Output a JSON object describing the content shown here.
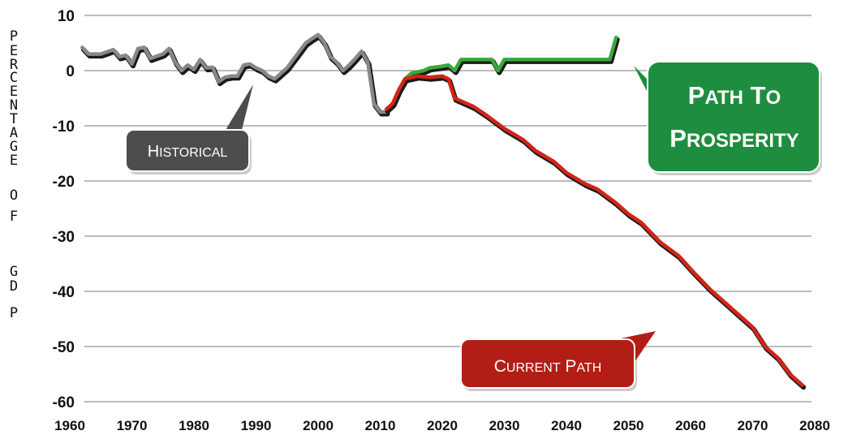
{
  "chart_data": {
    "type": "line",
    "title": "",
    "xlabel": "",
    "ylabel": "PERCENTAGE OF GDP",
    "xlim": [
      1960,
      2080
    ],
    "ylim": [
      -60,
      10
    ],
    "x_ticks": [
      "1960",
      "1970",
      "1980",
      "1990",
      "2000",
      "2010",
      "2020",
      "2030",
      "2040",
      "2050",
      "2060",
      "2070",
      "2080"
    ],
    "y_ticks": [
      "10",
      "0",
      "-10",
      "-20",
      "-30",
      "-40",
      "-50",
      "-60"
    ],
    "grid": true,
    "series": [
      {
        "name": "Historical",
        "color": "#888888",
        "points": [
          [
            1962,
            4.2
          ],
          [
            1963,
            3.0
          ],
          [
            1965,
            3.0
          ],
          [
            1967,
            3.8
          ],
          [
            1968,
            2.5
          ],
          [
            1969,
            2.8
          ],
          [
            1970,
            1.2
          ],
          [
            1971,
            4.0
          ],
          [
            1972,
            4.2
          ],
          [
            1973,
            2.2
          ],
          [
            1975,
            3.0
          ],
          [
            1976,
            4.0
          ],
          [
            1977,
            1.5
          ],
          [
            1978,
            0.0
          ],
          [
            1979,
            1.0
          ],
          [
            1980,
            0.2
          ],
          [
            1981,
            2.0
          ],
          [
            1982,
            0.5
          ],
          [
            1983,
            0.6
          ],
          [
            1984,
            -2.0
          ],
          [
            1985,
            -1.2
          ],
          [
            1986,
            -1.0
          ],
          [
            1987,
            -1.0
          ],
          [
            1988,
            1.0
          ],
          [
            1989,
            1.2
          ],
          [
            1990,
            0.5
          ],
          [
            1991,
            0.0
          ],
          [
            1992,
            -1.0
          ],
          [
            1993,
            -1.5
          ],
          [
            1994,
            -0.5
          ],
          [
            1995,
            0.5
          ],
          [
            1996,
            2.0
          ],
          [
            1997,
            3.5
          ],
          [
            1998,
            5.0
          ],
          [
            1999,
            5.8
          ],
          [
            2000,
            6.5
          ],
          [
            2001,
            5.0
          ],
          [
            2002,
            2.5
          ],
          [
            2003,
            1.5
          ],
          [
            2004,
            0.0
          ],
          [
            2005,
            1.0
          ],
          [
            2006,
            2.2
          ],
          [
            2007,
            3.5
          ],
          [
            2008,
            1.5
          ],
          [
            2009,
            -6.0
          ],
          [
            2010,
            -7.5
          ],
          [
            2011,
            -7.5
          ]
        ]
      },
      {
        "name": "Path to Prosperity",
        "color": "#3aa83a",
        "points": [
          [
            2011,
            -7.0
          ],
          [
            2012,
            -6.0
          ],
          [
            2013,
            -3.5
          ],
          [
            2014,
            -1.5
          ],
          [
            2015,
            -0.5
          ],
          [
            2017,
            0.0
          ],
          [
            2018,
            0.5
          ],
          [
            2020,
            0.8
          ],
          [
            2021,
            1.0
          ],
          [
            2022,
            0.0
          ],
          [
            2023,
            2.0
          ],
          [
            2025,
            2.0
          ],
          [
            2027,
            2.0
          ],
          [
            2028,
            2.0
          ],
          [
            2029,
            0.0
          ],
          [
            2030,
            2.0
          ],
          [
            2035,
            2.0
          ],
          [
            2038,
            2.0
          ],
          [
            2040,
            2.0
          ],
          [
            2045,
            2.0
          ],
          [
            2047,
            2.0
          ],
          [
            2048,
            6.0
          ]
        ]
      },
      {
        "name": "Current Path",
        "color": "#d42418",
        "points": [
          [
            2011,
            -7.0
          ],
          [
            2012,
            -6.0
          ],
          [
            2013,
            -3.5
          ],
          [
            2014,
            -1.5
          ],
          [
            2016,
            -1.0
          ],
          [
            2018,
            -1.2
          ],
          [
            2020,
            -1.0
          ],
          [
            2021,
            -1.5
          ],
          [
            2022,
            -5.0
          ],
          [
            2023,
            -5.5
          ],
          [
            2025,
            -6.5
          ],
          [
            2027,
            -8.0
          ],
          [
            2030,
            -10.5
          ],
          [
            2033,
            -12.5
          ],
          [
            2035,
            -14.5
          ],
          [
            2038,
            -16.5
          ],
          [
            2040,
            -18.5
          ],
          [
            2043,
            -20.5
          ],
          [
            2045,
            -21.5
          ],
          [
            2048,
            -24.0
          ],
          [
            2050,
            -26.0
          ],
          [
            2052,
            -27.5
          ],
          [
            2055,
            -31.0
          ],
          [
            2058,
            -33.5
          ],
          [
            2060,
            -36.0
          ],
          [
            2063,
            -39.5
          ],
          [
            2065,
            -41.5
          ],
          [
            2068,
            -44.5
          ],
          [
            2070,
            -46.5
          ],
          [
            2072,
            -50.0
          ],
          [
            2074,
            -52.0
          ],
          [
            2076,
            -55.0
          ],
          [
            2078,
            -57.0
          ]
        ]
      }
    ],
    "annotations": [
      {
        "name": "historical",
        "text": "HISTORICAL",
        "color": "#4d4d4d",
        "style": "small-caps"
      },
      {
        "name": "prosperity",
        "lines": [
          "PATH TO",
          "PROSPERITY"
        ],
        "color": "#1f8d3f",
        "style": "small-caps"
      },
      {
        "name": "current",
        "text": "CURRENT PATH",
        "color": "#b21e16",
        "style": "small-caps"
      }
    ]
  }
}
